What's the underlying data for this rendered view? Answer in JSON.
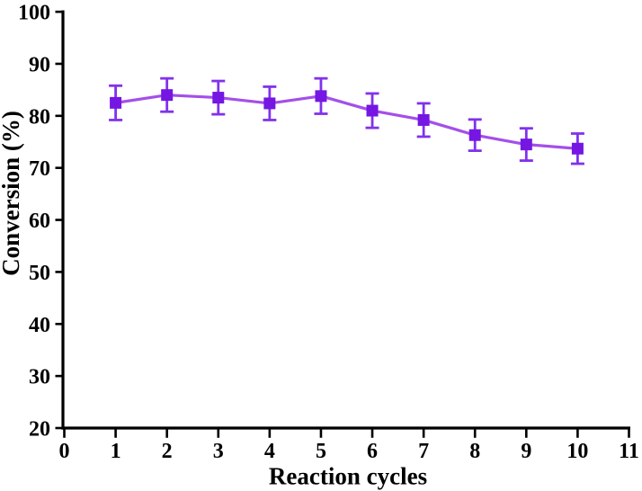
{
  "figure": {
    "background_color": "#ffffff"
  },
  "chart_data": {
    "type": "line",
    "title": "",
    "xlabel": "Reaction cycles",
    "ylabel": "Conversion (%)",
    "x": [
      1,
      2,
      3,
      4,
      5,
      6,
      7,
      8,
      9,
      10
    ],
    "series": [
      {
        "name": "conversion",
        "values": [
          82.5,
          84.0,
          83.5,
          82.4,
          83.8,
          81.0,
          79.2,
          76.3,
          74.5,
          73.7
        ],
        "errors": [
          3.3,
          3.2,
          3.2,
          3.2,
          3.4,
          3.3,
          3.2,
          3.0,
          3.1,
          2.9
        ],
        "marker": "square",
        "marker_color": "#7516e3",
        "line_color": "#a44fe9",
        "error_color": "#8132ec"
      }
    ],
    "xlim": [
      0,
      11
    ],
    "ylim": [
      20,
      100
    ],
    "x_ticks": [
      0,
      1,
      2,
      3,
      4,
      5,
      6,
      7,
      8,
      9,
      10,
      11
    ],
    "y_ticks": [
      20,
      30,
      40,
      50,
      60,
      70,
      80,
      90,
      100
    ],
    "grid": false,
    "legend": false,
    "axis_color": "#000000",
    "tick_label_color": "#000000"
  }
}
